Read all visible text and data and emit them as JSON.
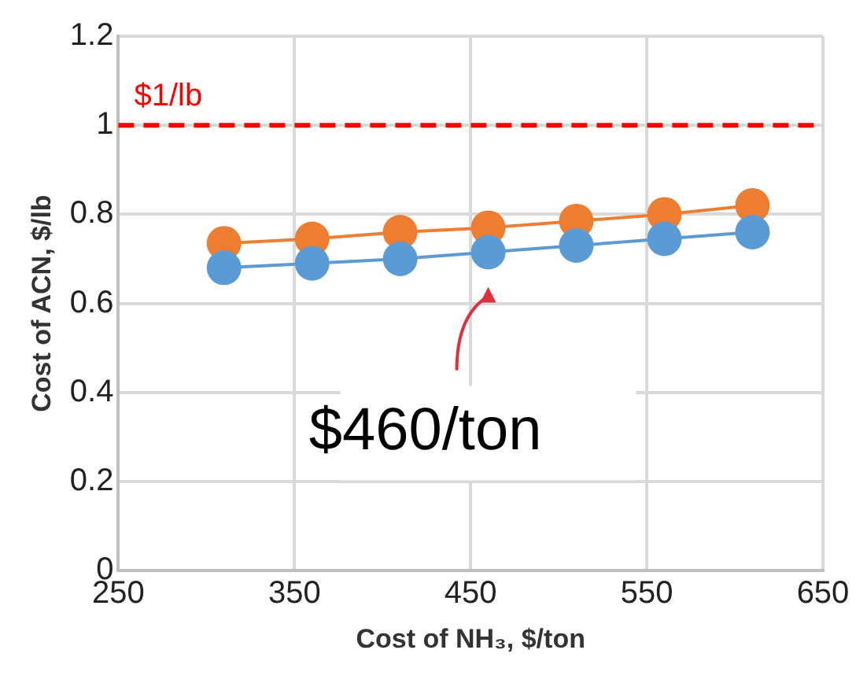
{
  "chart_data": {
    "type": "line",
    "xlabel": "Cost of NH₃, $/ton",
    "ylabel": "Cost of ACN, $/lb",
    "x": [
      310,
      360,
      410,
      460,
      510,
      560,
      610
    ],
    "series": [
      {
        "color": "#5b9bd5",
        "values": [
          0.68,
          0.69,
          0.7,
          0.715,
          0.73,
          0.745,
          0.76
        ]
      },
      {
        "color": "#ed7d31",
        "values": [
          0.735,
          0.745,
          0.76,
          0.77,
          0.785,
          0.8,
          0.82
        ]
      }
    ],
    "xlim": [
      250,
      650
    ],
    "xticks": [
      250,
      350,
      450,
      550,
      650
    ],
    "ylim": [
      0,
      1.2
    ],
    "yticks": [
      0,
      0.2,
      0.4,
      0.6,
      0.8,
      1,
      1.2
    ],
    "ref_lines": [
      {
        "axis": "y",
        "value": 1,
        "label": "$1/lb",
        "color": "#ff0000",
        "line_style": "dashed"
      }
    ],
    "annotations": [
      {
        "text": "$460/ton",
        "x": 460,
        "y": 0.715
      }
    ],
    "grid": true,
    "legend": false,
    "marker": "circle",
    "line_style": "solid"
  }
}
